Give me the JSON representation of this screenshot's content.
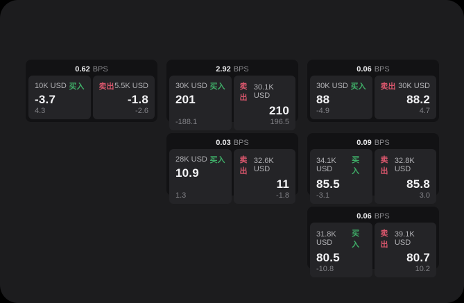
{
  "colors": {
    "buy": "#3fae68",
    "sell": "#d8566c",
    "page_bg": "#1c1c1e",
    "card_bg": "#121214",
    "panel_bg": "#242427"
  },
  "labels": {
    "bps_unit": "BPS",
    "buy": "买入",
    "sell": "卖出"
  },
  "cards": [
    {
      "row": 1,
      "col": 1,
      "bps": "0.62",
      "buy": {
        "amount": "10K USD",
        "value": "-3.7",
        "sub": "4.3"
      },
      "sell": {
        "amount": "5.5K USD",
        "value": "-1.8",
        "sub": "-2.6"
      }
    },
    {
      "row": 1,
      "col": 2,
      "bps": "2.92",
      "buy": {
        "amount": "30K USD",
        "value": "201",
        "sub": "-188.1"
      },
      "sell": {
        "amount": "30.1K USD",
        "value": "210",
        "sub": "196.5"
      }
    },
    {
      "row": 1,
      "col": 3,
      "bps": "0.06",
      "buy": {
        "amount": "30K USD",
        "value": "88",
        "sub": "-4.9"
      },
      "sell": {
        "amount": "30K USD",
        "value": "88.2",
        "sub": "4.7"
      }
    },
    {
      "row": 2,
      "col": 2,
      "bps": "0.03",
      "buy": {
        "amount": "28K USD",
        "value": "10.9",
        "sub": "1.3"
      },
      "sell": {
        "amount": "32.6K USD",
        "value": "11",
        "sub": "-1.8"
      }
    },
    {
      "row": 2,
      "col": 3,
      "bps": "0.09",
      "buy": {
        "amount": "34.1K USD",
        "value": "85.5",
        "sub": "-3.1"
      },
      "sell": {
        "amount": "32.8K USD",
        "value": "85.8",
        "sub": "3.0"
      }
    },
    {
      "row": 3,
      "col": 3,
      "bps": "0.06",
      "buy": {
        "amount": "31.8K USD",
        "value": "80.5",
        "sub": "-10.8"
      },
      "sell": {
        "amount": "39.1K USD",
        "value": "80.7",
        "sub": "10.2"
      }
    }
  ]
}
